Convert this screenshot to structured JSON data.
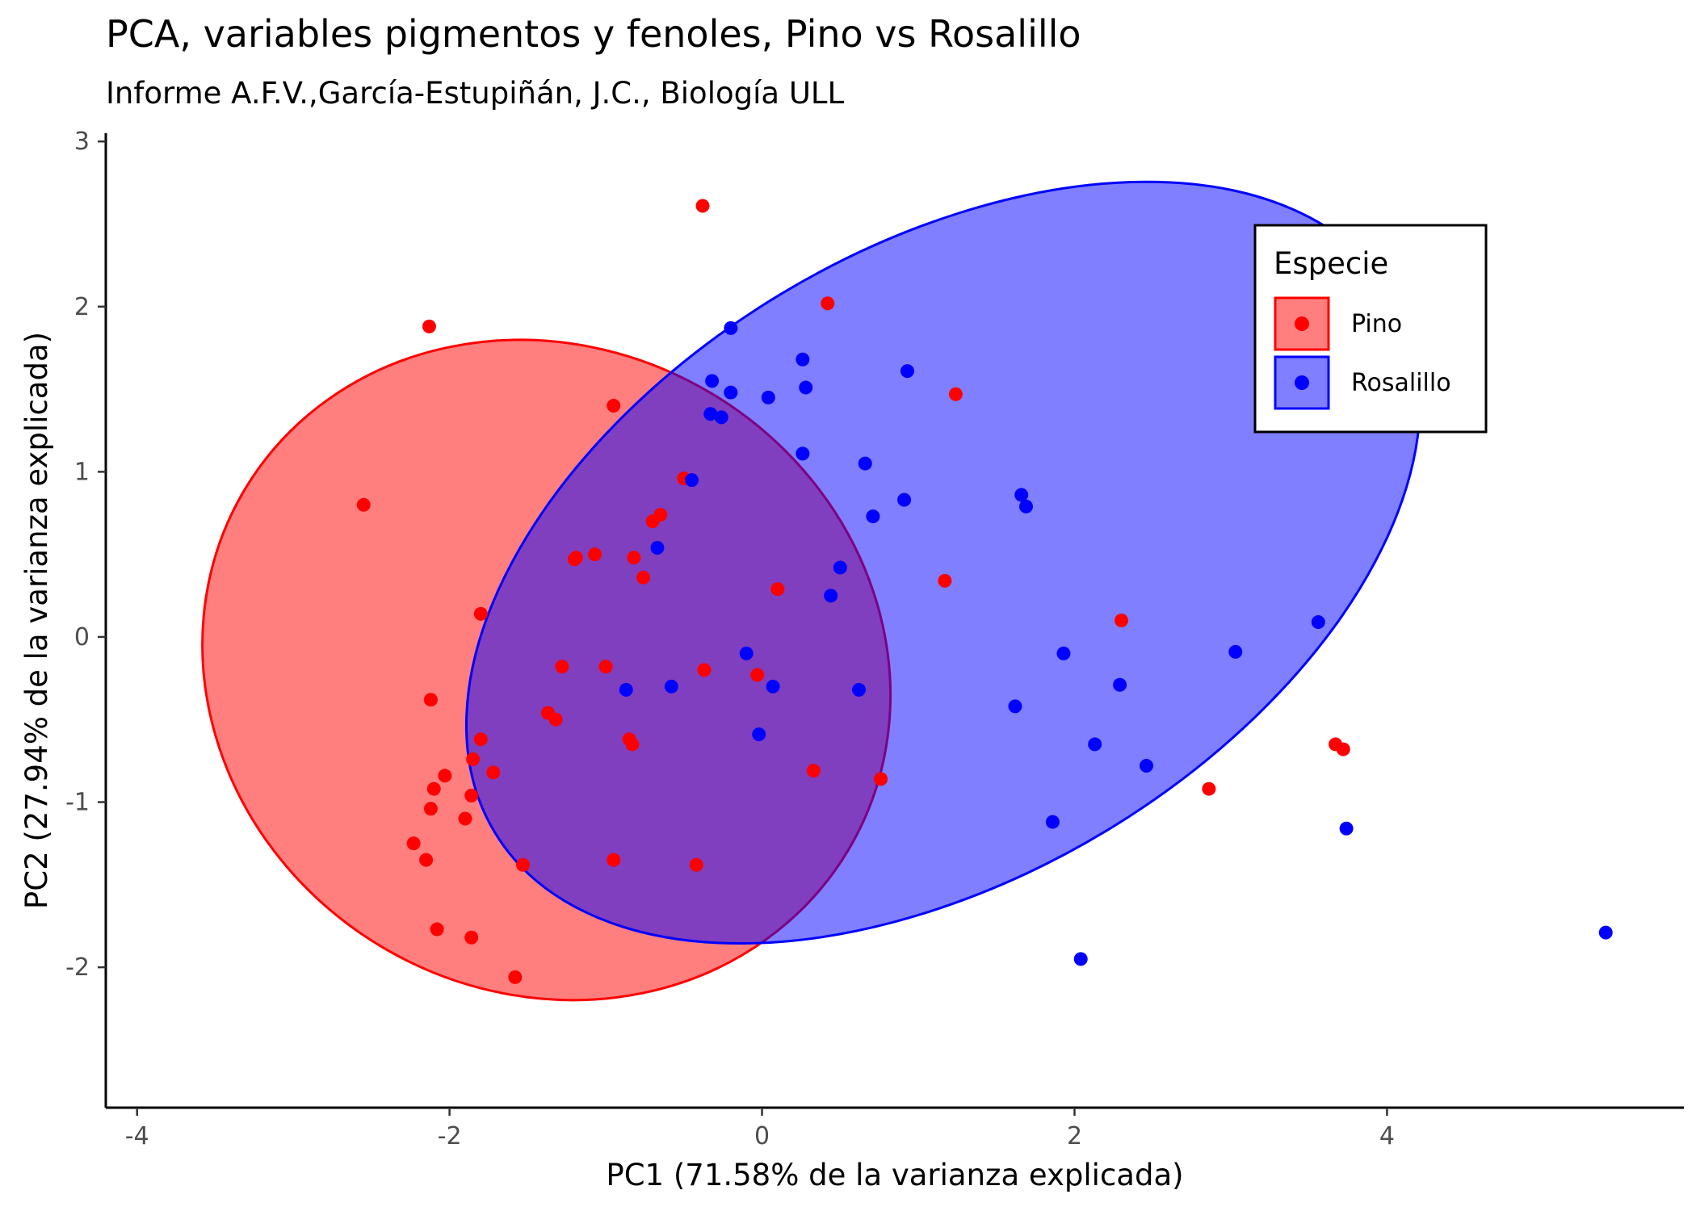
{
  "chart_data": {
    "type": "scatter",
    "title": "PCA, variables pigmentos y fenoles, Pino vs Rosalillo",
    "subtitle": "Informe A.F.V.,García-Estupiñán, J.C., Biología ULL",
    "xlabel": "PC1 (71.58% de la varianza explicada)",
    "ylabel": "PC2 (27.94% de la varianza explicada)",
    "xlim": [
      -4.2,
      5.9
    ],
    "ylim": [
      -2.85,
      3.05
    ],
    "xticks": [
      -4,
      -2,
      0,
      2,
      4
    ],
    "yticks": [
      -2,
      -1,
      0,
      1,
      2,
      3
    ],
    "grid": false,
    "legend": {
      "title": "Especie",
      "position": "top-right",
      "entries": [
        "Pino",
        "Rosalillo"
      ]
    },
    "series": [
      {
        "name": "Pino",
        "color": "#ff0000",
        "ellipse": {
          "center": [
            -1.38,
            -0.2
          ],
          "radii": [
            2.25,
            1.95
          ],
          "angle_deg": 31
        },
        "points": [
          [
            -2.55,
            0.8
          ],
          [
            -1.8,
            0.14
          ],
          [
            -2.12,
            -0.38
          ],
          [
            -1.8,
            -0.62
          ],
          [
            -1.85,
            -0.74
          ],
          [
            -1.72,
            -0.82
          ],
          [
            -2.03,
            -0.84
          ],
          [
            -2.1,
            -0.92
          ],
          [
            -1.86,
            -0.96
          ],
          [
            -2.12,
            -1.04
          ],
          [
            -1.9,
            -1.1
          ],
          [
            -2.23,
            -1.25
          ],
          [
            -2.15,
            -1.35
          ],
          [
            -2.08,
            -1.77
          ],
          [
            -1.86,
            -1.82
          ],
          [
            -1.58,
            -2.06
          ],
          [
            -1.53,
            -1.38
          ],
          [
            -0.95,
            -1.35
          ],
          [
            -0.42,
            -1.38
          ],
          [
            -0.85,
            -0.62
          ],
          [
            -0.83,
            -0.65
          ],
          [
            -1.37,
            -0.46
          ],
          [
            -1.32,
            -0.5
          ],
          [
            -1.28,
            -0.18
          ],
          [
            -1.0,
            -0.18
          ],
          [
            -0.37,
            -0.2
          ],
          [
            -1.2,
            0.47
          ],
          [
            -1.19,
            0.48
          ],
          [
            -1.07,
            0.5
          ],
          [
            -0.82,
            0.48
          ],
          [
            -0.76,
            0.36
          ],
          [
            -0.7,
            0.7
          ],
          [
            -0.65,
            0.74
          ],
          [
            -0.5,
            0.96
          ],
          [
            -0.95,
            1.4
          ],
          [
            0.1,
            0.29
          ],
          [
            -0.03,
            -0.23
          ],
          [
            0.33,
            -0.81
          ],
          [
            0.76,
            -0.86
          ],
          [
            1.17,
            0.34
          ],
          [
            1.24,
            1.47
          ],
          [
            0.42,
            2.02
          ],
          [
            -0.38,
            2.61
          ],
          [
            -2.13,
            1.88
          ],
          [
            2.3,
            0.1
          ],
          [
            2.86,
            -0.92
          ],
          [
            3.67,
            -0.65
          ],
          [
            3.72,
            -0.68
          ]
        ]
      },
      {
        "name": "Rosalillo",
        "color": "#0000ff",
        "ellipse": {
          "center": [
            1.16,
            0.45
          ],
          "radii": [
            3.35,
            1.9
          ],
          "angle_deg": -31
        },
        "points": [
          [
            -0.2,
            1.87
          ],
          [
            0.26,
            1.68
          ],
          [
            0.28,
            1.51
          ],
          [
            0.04,
            1.45
          ],
          [
            -0.2,
            1.48
          ],
          [
            -0.32,
            1.55
          ],
          [
            -0.33,
            1.35
          ],
          [
            -0.26,
            1.33
          ],
          [
            0.93,
            1.61
          ],
          [
            0.26,
            1.11
          ],
          [
            0.66,
            1.05
          ],
          [
            -0.45,
            0.95
          ],
          [
            0.91,
            0.83
          ],
          [
            0.71,
            0.73
          ],
          [
            -0.67,
            0.54
          ],
          [
            0.5,
            0.42
          ],
          [
            0.44,
            0.25
          ],
          [
            1.66,
            0.86
          ],
          [
            1.69,
            0.79
          ],
          [
            -0.1,
            -0.1
          ],
          [
            0.07,
            -0.3
          ],
          [
            -0.58,
            -0.3
          ],
          [
            -0.87,
            -0.32
          ],
          [
            0.62,
            -0.32
          ],
          [
            -0.02,
            -0.59
          ],
          [
            1.62,
            -0.42
          ],
          [
            1.93,
            -0.1
          ],
          [
            2.29,
            -0.29
          ],
          [
            2.13,
            -0.65
          ],
          [
            2.46,
            -0.78
          ],
          [
            1.86,
            -1.12
          ],
          [
            2.04,
            -1.95
          ],
          [
            3.03,
            -0.09
          ],
          [
            3.56,
            0.09
          ],
          [
            3.74,
            -1.16
          ],
          [
            5.4,
            -1.79
          ]
        ]
      }
    ]
  }
}
